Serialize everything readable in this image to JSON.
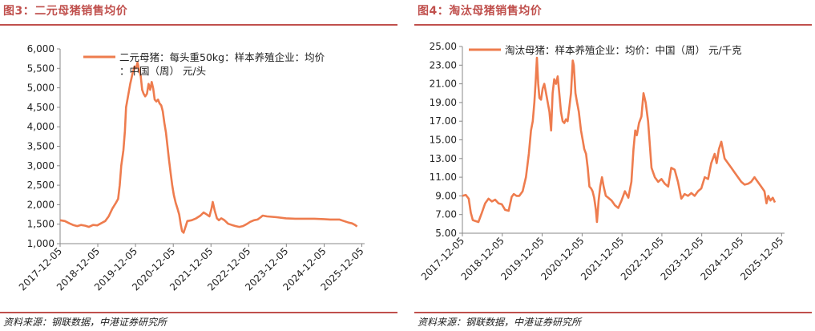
{
  "accent_color": "#c0504d",
  "line_color": "#ee7c4e",
  "panels": [
    {
      "title": "图3：二元母猪销售均价",
      "source": "资料来源：钢联数据，中港证券研究所",
      "legend": "二元母猪：每头重50kg：样本养殖企业：均价：中国（周） 元/头"
    },
    {
      "title": "图4：淘汰母猪销售均价",
      "source": "资料来源：钢联数据，中港证券研究所",
      "legend": "淘汰母猪：样本养殖企业：均价：中国（周） 元/千克"
    }
  ],
  "chart_data": [
    {
      "type": "line",
      "title": "二元母猪销售均价",
      "legend_position": "top",
      "grid": false,
      "y_ticks": [
        "1,000",
        "1,500",
        "2,000",
        "2,500",
        "3,000",
        "3,500",
        "4,000",
        "4,500",
        "5,000",
        "5,500",
        "6,000"
      ],
      "ylim": [
        1000,
        6000
      ],
      "x_ticks": [
        "2017-12-05",
        "2018-12-05",
        "2019-12-05",
        "2020-12-05",
        "2021-12-05",
        "2022-12-05",
        "2023-12-05",
        "2024-12-05",
        "2025-12-05"
      ],
      "xlim": [
        "2017-12-05",
        "2026-01-01"
      ],
      "series": [
        {
          "name": "二元母猪：每头重50kg：样本养殖企业：均价：中国（周） 元/头",
          "points": [
            [
              "2017-12-05",
              1600
            ],
            [
              "2018-01-20",
              1580
            ],
            [
              "2018-03-05",
              1520
            ],
            [
              "2018-04-10",
              1480
            ],
            [
              "2018-05-20",
              1450
            ],
            [
              "2018-06-25",
              1480
            ],
            [
              "2018-08-05",
              1460
            ],
            [
              "2018-09-10",
              1430
            ],
            [
              "2018-10-20",
              1480
            ],
            [
              "2018-11-30",
              1470
            ],
            [
              "2019-01-05",
              1520
            ],
            [
              "2019-02-15",
              1580
            ],
            [
              "2019-03-20",
              1700
            ],
            [
              "2019-04-25",
              1900
            ],
            [
              "2019-05-30",
              2050
            ],
            [
              "2019-06-20",
              2150
            ],
            [
              "2019-07-05",
              2500
            ],
            [
              "2019-07-20",
              3000
            ],
            [
              "2019-08-10",
              3400
            ],
            [
              "2019-08-25",
              3900
            ],
            [
              "2019-09-05",
              4500
            ],
            [
              "2019-09-25",
              4800
            ],
            [
              "2019-10-15",
              5100
            ],
            [
              "2019-11-05",
              5350
            ],
            [
              "2019-11-25",
              5550
            ],
            [
              "2019-12-10",
              5500
            ],
            [
              "2019-12-25",
              5650
            ],
            [
              "2020-01-10",
              5450
            ],
            [
              "2020-01-25",
              5300
            ],
            [
              "2020-02-08",
              4950
            ],
            [
              "2020-02-22",
              4850
            ],
            [
              "2020-03-08",
              4780
            ],
            [
              "2020-03-25",
              4850
            ],
            [
              "2020-04-10",
              5100
            ],
            [
              "2020-04-25",
              4950
            ],
            [
              "2020-05-10",
              5150
            ],
            [
              "2020-05-25",
              4980
            ],
            [
              "2020-06-08",
              4700
            ],
            [
              "2020-06-25",
              4650
            ],
            [
              "2020-07-10",
              4700
            ],
            [
              "2020-07-25",
              4600
            ],
            [
              "2020-08-10",
              4550
            ],
            [
              "2020-08-25",
              4400
            ],
            [
              "2020-09-10",
              4100
            ],
            [
              "2020-09-25",
              3850
            ],
            [
              "2020-10-10",
              3500
            ],
            [
              "2020-10-25",
              3150
            ],
            [
              "2020-11-10",
              2800
            ],
            [
              "2020-11-25",
              2500
            ],
            [
              "2020-12-10",
              2250
            ],
            [
              "2020-12-28",
              2050
            ],
            [
              "2021-01-15",
              1900
            ],
            [
              "2021-01-31",
              1750
            ],
            [
              "2021-02-15",
              1500
            ],
            [
              "2021-02-28",
              1320
            ],
            [
              "2021-03-15",
              1280
            ],
            [
              "2021-04-01",
              1420
            ],
            [
              "2021-04-20",
              1580
            ],
            [
              "2021-06-01",
              1600
            ],
            [
              "2021-07-15",
              1650
            ],
            [
              "2021-08-25",
              1720
            ],
            [
              "2021-09-25",
              1800
            ],
            [
              "2021-10-20",
              1760
            ],
            [
              "2021-11-20",
              1700
            ],
            [
              "2021-12-10",
              1900
            ],
            [
              "2021-12-22",
              2070
            ],
            [
              "2022-01-10",
              1850
            ],
            [
              "2022-02-01",
              1650
            ],
            [
              "2022-02-20",
              1600
            ],
            [
              "2022-03-15",
              1650
            ],
            [
              "2022-04-15",
              1600
            ],
            [
              "2022-05-20",
              1510
            ],
            [
              "2022-06-25",
              1480
            ],
            [
              "2022-08-01",
              1450
            ],
            [
              "2022-09-05",
              1430
            ],
            [
              "2022-10-10",
              1450
            ],
            [
              "2022-11-15",
              1500
            ],
            [
              "2022-12-20",
              1560
            ],
            [
              "2023-01-25",
              1600
            ],
            [
              "2023-03-01",
              1620
            ],
            [
              "2023-04-01",
              1680
            ],
            [
              "2023-04-20",
              1720
            ],
            [
              "2023-06-01",
              1700
            ],
            [
              "2023-09-01",
              1680
            ],
            [
              "2023-12-01",
              1650
            ],
            [
              "2024-03-01",
              1640
            ],
            [
              "2024-06-01",
              1640
            ],
            [
              "2024-09-01",
              1640
            ],
            [
              "2024-12-01",
              1630
            ],
            [
              "2025-02-01",
              1620
            ],
            [
              "2025-05-01",
              1620
            ],
            [
              "2025-06-15",
              1580
            ],
            [
              "2025-08-01",
              1540
            ],
            [
              "2025-09-01",
              1520
            ],
            [
              "2025-10-01",
              1480
            ],
            [
              "2025-10-20",
              1440
            ]
          ]
        }
      ]
    },
    {
      "type": "line",
      "title": "淘汰母猪销售均价",
      "legend_position": "top",
      "grid": false,
      "y_ticks": [
        "5.00",
        "7.00",
        "9.00",
        "11.00",
        "13.00",
        "15.00",
        "17.00",
        "19.00",
        "21.00",
        "23.00",
        "25.00"
      ],
      "ylim": [
        5,
        25
      ],
      "x_ticks": [
        "2017-12-05",
        "2018-12-05",
        "2019-12-05",
        "2020-12-05",
        "2021-12-05",
        "2022-12-05",
        "2023-12-05",
        "2024-12-05",
        "2025-12-05"
      ],
      "xlim": [
        "2017-12-05",
        "2026-01-01"
      ],
      "series": [
        {
          "name": "淘汰母猪：样本养殖企业：均价：中国（周） 元/千克",
          "points": [
            [
              "2017-12-05",
              9.0
            ],
            [
              "2018-01-05",
              9.1
            ],
            [
              "2018-02-01",
              8.7
            ],
            [
              "2018-02-20",
              7.2
            ],
            [
              "2018-03-10",
              6.4
            ],
            [
              "2018-04-05",
              6.3
            ],
            [
              "2018-05-01",
              6.2
            ],
            [
              "2018-06-01",
              7.2
            ],
            [
              "2018-07-01",
              8.2
            ],
            [
              "2018-08-01",
              8.7
            ],
            [
              "2018-09-01",
              8.4
            ],
            [
              "2018-10-01",
              8.6
            ],
            [
              "2018-11-01",
              8.2
            ],
            [
              "2018-12-01",
              8.1
            ],
            [
              "2019-01-01",
              7.5
            ],
            [
              "2019-02-01",
              7.4
            ],
            [
              "2019-03-01",
              8.9
            ],
            [
              "2019-03-20",
              9.2
            ],
            [
              "2019-04-15",
              9.0
            ],
            [
              "2019-05-10",
              9.0
            ],
            [
              "2019-06-10",
              9.5
            ],
            [
              "2019-07-10",
              11.0
            ],
            [
              "2019-08-05",
              13.5
            ],
            [
              "2019-08-25",
              16.0
            ],
            [
              "2019-09-10",
              17.0
            ],
            [
              "2019-09-25",
              19.0
            ],
            [
              "2019-10-08",
              21.5
            ],
            [
              "2019-10-18",
              23.8
            ],
            [
              "2019-10-30",
              21.0
            ],
            [
              "2019-11-10",
              19.5
            ],
            [
              "2019-11-25",
              19.3
            ],
            [
              "2019-12-10",
              20.5
            ],
            [
              "2019-12-25",
              21.0
            ],
            [
              "2020-01-10",
              20.0
            ],
            [
              "2020-01-25",
              19.0
            ],
            [
              "2020-02-10",
              18.0
            ],
            [
              "2020-02-25",
              16.0
            ],
            [
              "2020-03-10",
              20.0
            ],
            [
              "2020-03-25",
              21.5
            ],
            [
              "2020-04-10",
              21.0
            ],
            [
              "2020-04-25",
              21.8
            ],
            [
              "2020-05-10",
              20.0
            ],
            [
              "2020-05-25",
              18.0
            ],
            [
              "2020-06-10",
              17.0
            ],
            [
              "2020-06-25",
              16.8
            ],
            [
              "2020-07-10",
              17.2
            ],
            [
              "2020-07-25",
              17.0
            ],
            [
              "2020-08-10",
              18.5
            ],
            [
              "2020-08-25",
              20.0
            ],
            [
              "2020-09-10",
              23.5
            ],
            [
              "2020-09-20",
              23.0
            ],
            [
              "2020-10-05",
              20.0
            ],
            [
              "2020-10-20",
              19.0
            ],
            [
              "2020-11-05",
              18.0
            ],
            [
              "2020-11-25",
              16.0
            ],
            [
              "2020-12-10",
              15.0
            ],
            [
              "2020-12-25",
              14.0
            ],
            [
              "2021-01-10",
              13.5
            ],
            [
              "2021-01-25",
              12.0
            ],
            [
              "2021-02-10",
              10.0
            ],
            [
              "2021-02-25",
              9.8
            ],
            [
              "2021-03-10",
              9.5
            ],
            [
              "2021-03-25",
              8.8
            ],
            [
              "2021-04-10",
              7.5
            ],
            [
              "2021-04-20",
              6.2
            ],
            [
              "2021-05-05",
              8.5
            ],
            [
              "2021-05-20",
              10.0
            ],
            [
              "2021-06-05",
              11.0
            ],
            [
              "2021-06-20",
              10.0
            ],
            [
              "2021-07-10",
              9.0
            ],
            [
              "2021-08-01",
              8.8
            ],
            [
              "2021-09-01",
              8.5
            ],
            [
              "2021-10-01",
              8.0
            ],
            [
              "2021-11-01",
              7.7
            ],
            [
              "2021-12-01",
              8.5
            ],
            [
              "2022-01-01",
              9.5
            ],
            [
              "2022-02-01",
              8.8
            ],
            [
              "2022-03-01",
              10.5
            ],
            [
              "2022-03-20",
              14.0
            ],
            [
              "2022-04-05",
              16.0
            ],
            [
              "2022-04-20",
              15.5
            ],
            [
              "2022-05-10",
              16.8
            ],
            [
              "2022-06-01",
              17.5
            ],
            [
              "2022-06-20",
              20.0
            ],
            [
              "2022-07-10",
              19.0
            ],
            [
              "2022-08-01",
              17.0
            ],
            [
              "2022-09-01",
              12.0
            ],
            [
              "2022-10-01",
              11.0
            ],
            [
              "2022-11-01",
              10.5
            ],
            [
              "2022-12-01",
              10.8
            ],
            [
              "2023-01-01",
              10.3
            ],
            [
              "2023-02-01",
              10.0
            ],
            [
              "2023-03-01",
              12.0
            ],
            [
              "2023-04-01",
              11.8
            ],
            [
              "2023-05-01",
              10.5
            ],
            [
              "2023-06-01",
              8.7
            ],
            [
              "2023-07-01",
              9.2
            ],
            [
              "2023-08-01",
              9.0
            ],
            [
              "2023-09-01",
              9.3
            ],
            [
              "2023-10-01",
              9.0
            ],
            [
              "2023-11-01",
              9.5
            ],
            [
              "2023-12-01",
              9.8
            ],
            [
              "2024-01-01",
              11.0
            ],
            [
              "2024-02-01",
              10.8
            ],
            [
              "2024-03-01",
              12.5
            ],
            [
              "2024-04-01",
              13.5
            ],
            [
              "2024-04-20",
              12.5
            ],
            [
              "2024-05-10",
              14.0
            ],
            [
              "2024-06-01",
              14.8
            ],
            [
              "2024-07-01",
              13.0
            ],
            [
              "2024-08-01",
              12.5
            ],
            [
              "2024-09-01",
              12.0
            ],
            [
              "2024-10-01",
              11.5
            ],
            [
              "2024-11-01",
              11.0
            ],
            [
              "2024-12-01",
              10.5
            ],
            [
              "2025-01-01",
              10.2
            ],
            [
              "2025-02-01",
              10.3
            ],
            [
              "2025-03-01",
              10.5
            ],
            [
              "2025-04-01",
              11.0
            ],
            [
              "2025-05-01",
              10.5
            ],
            [
              "2025-06-01",
              10.0
            ],
            [
              "2025-07-01",
              9.5
            ],
            [
              "2025-07-20",
              8.2
            ],
            [
              "2025-08-05",
              9.0
            ],
            [
              "2025-08-25",
              8.5
            ],
            [
              "2025-09-15",
              8.8
            ],
            [
              "2025-10-05",
              8.3
            ]
          ]
        }
      ]
    }
  ]
}
